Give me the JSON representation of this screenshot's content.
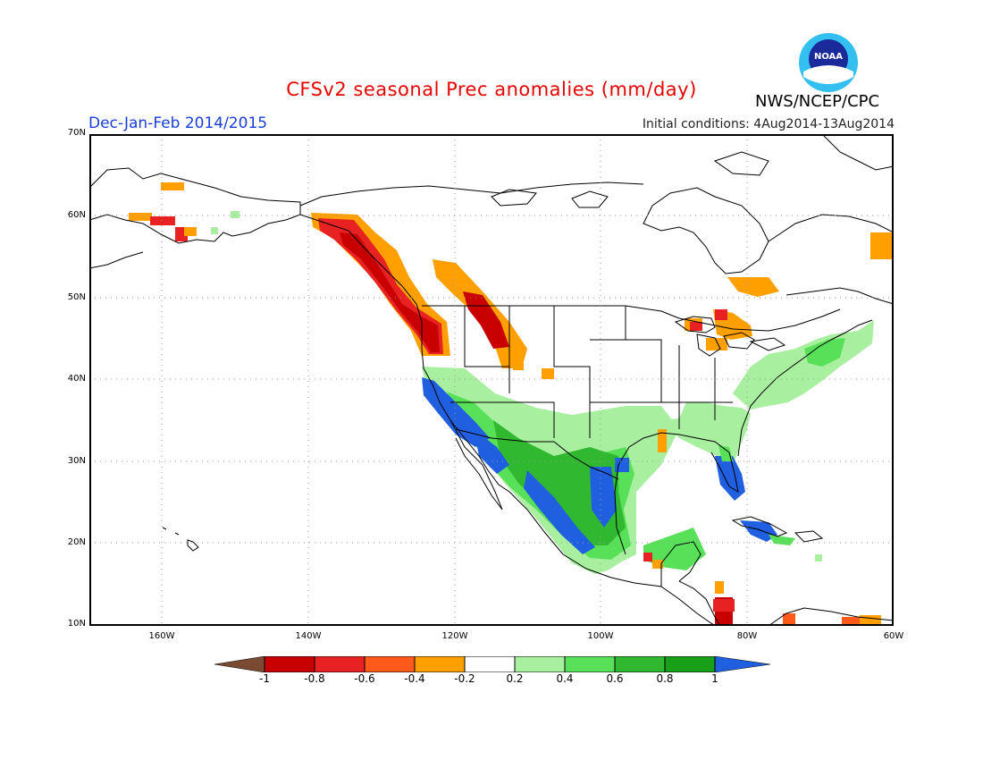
{
  "title": "CFSv2 seasonal Prec anomalies (mm/day)",
  "agency": "NWS/NCEP/CPC",
  "logo_text": "NOAA",
  "period": "Dec-Jan-Feb 2014/2015",
  "initial_conditions": "Initial conditions: 4Aug2014-13Aug2014",
  "lat_labels": [
    "70N",
    "60N",
    "50N",
    "40N",
    "30N",
    "20N",
    "10N"
  ],
  "lon_labels": [
    "160W",
    "140W",
    "120W",
    "100W",
    "80W",
    "60W"
  ],
  "colorbar": {
    "labels": [
      "-1",
      "-0.8",
      "-0.6",
      "-0.4",
      "-0.2",
      "0.2",
      "0.4",
      "0.6",
      "0.8",
      "1"
    ],
    "colors": [
      "#7a4a33",
      "#c80000",
      "#e82222",
      "#ff5a1a",
      "#ffa000",
      "#ffffff",
      "#a8f0a0",
      "#58e058",
      "#30b830",
      "#18a018",
      "#2060e0"
    ]
  },
  "colors": {
    "neg_strong": "#c80000",
    "neg_mid": "#e82222",
    "neg_weak": "#ff5a1a",
    "neg_light": "#ffa000",
    "pos_light": "#a8f0a0",
    "pos_mid": "#58e058",
    "pos_strong": "#30b830",
    "pos_stronger": "#18a018",
    "pos_max": "#2060e0"
  }
}
